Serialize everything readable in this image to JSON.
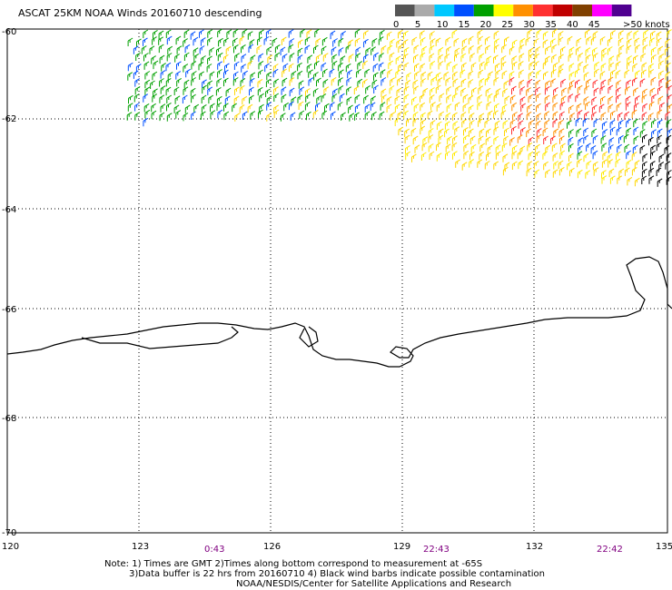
{
  "title": "ASCAT 25KM NOAA Winds 20160710 descending",
  "legend": {
    "unit_label": ">50 knots",
    "ticks": [
      "0",
      "5",
      "10",
      "15",
      "20",
      "25",
      "30",
      "35",
      "40",
      "45"
    ],
    "colors": [
      "#555555",
      "#aaaaaa",
      "#00c8ff",
      "#0050ff",
      "#00a000",
      "#ffff00",
      "#ff9000",
      "#ff3030",
      "#c00000",
      "#804000",
      "#ff00ff",
      "#500090"
    ]
  },
  "axes": {
    "x_ticks": [
      "120",
      "123",
      "126",
      "129",
      "132",
      "135"
    ],
    "y_ticks": [
      "-60",
      "-62",
      "-64",
      "-66",
      "-68",
      "-70"
    ]
  },
  "times": [
    "0:43",
    "22:43",
    "22:42"
  ],
  "notes": [
    "Note: 1) Times are GMT 2)Times along bottom correspond to measurement at -65S",
    "3)Data buffer is 22 hrs from 20160710 4) Black wind barbs indicate possible contamination",
    "NOAA/NESDIS/Center for Satellite Applications and Research"
  ],
  "colors": {
    "grid": "#000000",
    "coast": "#000000",
    "time_text": "#800080"
  }
}
